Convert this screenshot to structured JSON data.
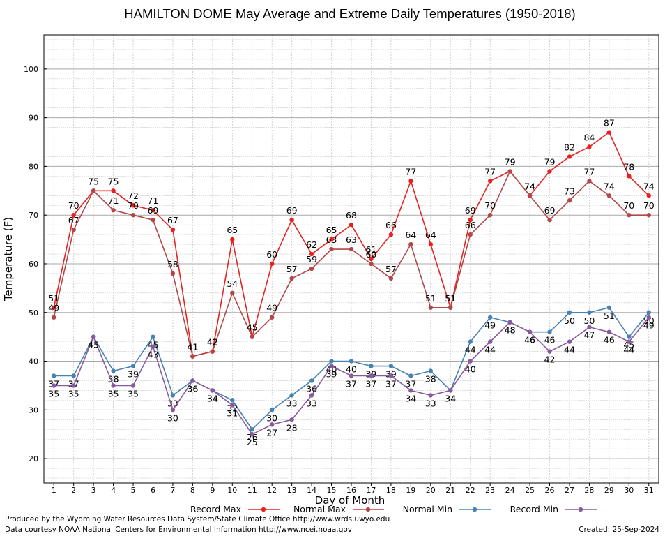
{
  "chart_data": {
    "type": "line",
    "title": "HAMILTON DOME May Average and Extreme Daily Temperatures (1950-2018)",
    "xlabel": "Day of Month",
    "ylabel": "Temperature (F)",
    "x": [
      1,
      2,
      3,
      4,
      5,
      6,
      7,
      8,
      9,
      10,
      11,
      12,
      13,
      14,
      15,
      16,
      17,
      18,
      19,
      20,
      21,
      22,
      23,
      24,
      25,
      26,
      27,
      28,
      29,
      30,
      31
    ],
    "xlim": [
      0.5,
      31.5
    ],
    "ylim": [
      15,
      107
    ],
    "yticks": [
      20,
      30,
      40,
      50,
      60,
      70,
      80,
      90,
      100
    ],
    "grid": true,
    "legend_position": "bottom",
    "series": [
      {
        "name": "Record Max",
        "color": "#e8211f",
        "values": [
          51,
          70,
          75,
          75,
          72,
          71,
          67,
          41,
          42,
          65,
          45,
          60,
          69,
          62,
          65,
          68,
          61,
          66,
          77,
          64,
          51,
          69,
          77,
          79,
          74,
          79,
          82,
          84,
          87,
          78,
          74
        ]
      },
      {
        "name": "Normal Max",
        "color": "#b34747",
        "values": [
          49,
          67,
          75,
          71,
          70,
          69,
          58,
          41,
          42,
          54,
          45,
          49,
          57,
          59,
          63,
          63,
          60,
          57,
          64,
          51,
          51,
          66,
          70,
          79,
          74,
          69,
          73,
          77,
          74,
          70,
          70
        ]
      },
      {
        "name": "Normal Min",
        "color": "#4682b4",
        "values": [
          37,
          37,
          45,
          38,
          39,
          45,
          33,
          36,
          34,
          32,
          26,
          30,
          33,
          36,
          40,
          40,
          39,
          39,
          37,
          38,
          34,
          44,
          49,
          48,
          46,
          46,
          50,
          50,
          51,
          45,
          50
        ]
      },
      {
        "name": "Record Min",
        "color": "#8a5a9e",
        "values": [
          35,
          35,
          45,
          35,
          35,
          43,
          30,
          36,
          34,
          31,
          25,
          27,
          28,
          33,
          39,
          37,
          37,
          37,
          34,
          33,
          34,
          40,
          44,
          48,
          46,
          42,
          44,
          47,
          46,
          44,
          49
        ]
      }
    ]
  },
  "footer": {
    "produced_by": "Produced by the Wyoming Water Resources Data System/State Climate Office http://www.wrds.uwyo.edu",
    "courtesy": "Data courtesy NOAA National Centers for Environmental Information http://www.ncei.noaa.gov",
    "created": "Created:  25-Sep-2024"
  }
}
